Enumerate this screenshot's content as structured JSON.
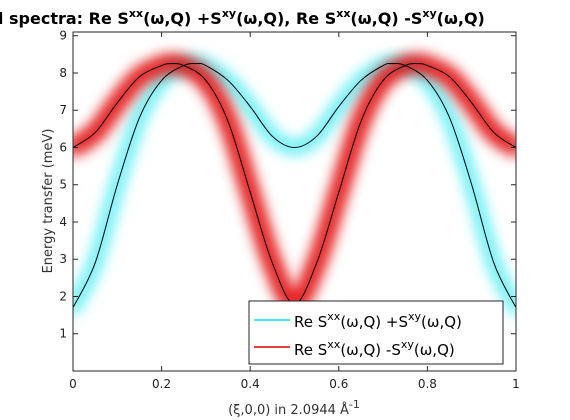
{
  "chart_data": {
    "type": "line",
    "title": {
      "prefix": "d spectra: Re S",
      "sup1": "xx",
      "mid1": "(ω,Q) +S",
      "sup2": "xy",
      "mid2": "(ω,Q), Re S",
      "sup3": "xx",
      "mid3": "(ω,Q) -S",
      "sup4": "xy",
      "suffix": "(ω,Q)"
    },
    "xlabel": {
      "main": "(ξ,0,0) in 2.0944 Å",
      "sup": "-1"
    },
    "ylabel": "Energy transfer (meV)",
    "xlim": [
      0,
      1
    ],
    "ylim": [
      0,
      9.1
    ],
    "xticks": [
      "0",
      "0.2",
      "0.4",
      "0.6",
      "0.8",
      "1"
    ],
    "yticks": [
      "1",
      "2",
      "3",
      "4",
      "5",
      "6",
      "7",
      "8",
      "9"
    ],
    "grid": false,
    "legend_position": "bottom-right",
    "series": [
      {
        "name": {
          "a": "Re S",
          "b": "xx",
          "c": "(ω,Q) +S",
          "d": "xy",
          "e": "(ω,Q)"
        },
        "color": "#00e5ee",
        "dispersion": "cyan (acoustic) branch",
        "x": [
          0,
          0.05,
          0.1,
          0.15,
          0.2,
          0.25,
          0.28,
          0.3,
          0.35,
          0.4,
          0.45,
          0.5,
          0.55,
          0.6,
          0.65,
          0.7,
          0.72,
          0.75,
          0.8,
          0.85,
          0.9,
          0.95,
          1
        ],
        "values": [
          1.7,
          2.9,
          5.0,
          6.8,
          7.8,
          8.2,
          8.25,
          8.2,
          7.8,
          7.1,
          6.3,
          6.0,
          6.3,
          7.1,
          7.8,
          8.2,
          8.25,
          8.2,
          7.8,
          6.8,
          5.0,
          2.9,
          1.7
        ]
      },
      {
        "name": {
          "a": "Re S",
          "b": "xx",
          "c": "(ω,Q) -S",
          "d": "xy",
          "e": "(ω,Q)"
        },
        "color": "#e00000",
        "dispersion": "red (optic) branch",
        "x": [
          0,
          0.05,
          0.1,
          0.15,
          0.2,
          0.22,
          0.25,
          0.3,
          0.35,
          0.4,
          0.45,
          0.5,
          0.55,
          0.6,
          0.65,
          0.7,
          0.75,
          0.78,
          0.8,
          0.85,
          0.9,
          0.95,
          1
        ],
        "values": [
          6.0,
          6.4,
          7.2,
          7.9,
          8.2,
          8.25,
          8.2,
          7.8,
          6.7,
          4.8,
          2.9,
          1.8,
          2.9,
          4.8,
          6.7,
          7.8,
          8.2,
          8.25,
          8.2,
          7.9,
          7.2,
          6.4,
          6.0
        ]
      }
    ]
  }
}
